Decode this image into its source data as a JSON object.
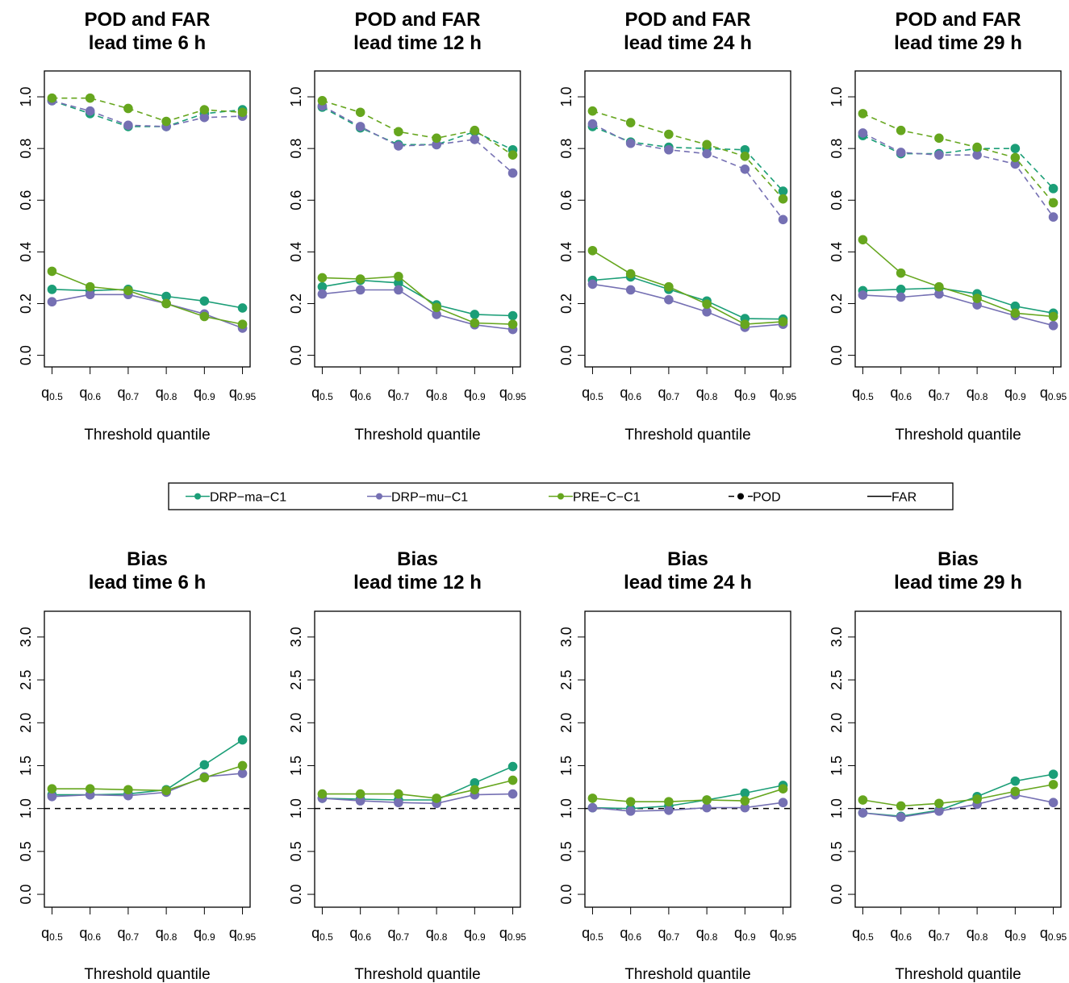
{
  "colors": {
    "DRP-ma-C1": "#1b9e77",
    "DRP-mu-C1": "#7570b3",
    "PRE-C-C1": "#66a61e",
    "reference": "#000000"
  },
  "legend": {
    "placement": "middle-center",
    "items": [
      {
        "label": "DRP−ma−C1",
        "kind": "series",
        "color": "#1b9e77"
      },
      {
        "label": "DRP−mu−C1",
        "kind": "series",
        "color": "#7570b3"
      },
      {
        "label": "PRE−C−C1",
        "kind": "series",
        "color": "#66a61e"
      },
      {
        "label": "POD",
        "kind": "dashed",
        "color": "#000000"
      },
      {
        "label": "FAR",
        "kind": "solid",
        "color": "#000000"
      }
    ]
  },
  "chart_data": [
    {
      "type": "line",
      "row": 0,
      "title": [
        "POD and FAR",
        "lead time 6 h"
      ],
      "xlabel": "Threshold quantile",
      "categories": [
        {
          "base": "q",
          "sub": "0.5"
        },
        {
          "base": "q",
          "sub": "0.6"
        },
        {
          "base": "q",
          "sub": "0.7"
        },
        {
          "base": "q",
          "sub": "0.8"
        },
        {
          "base": "q",
          "sub": "0.9"
        },
        {
          "base": "q",
          "sub": "0.95"
        }
      ],
      "ylim": [
        0,
        1.0
      ],
      "yticks": [
        "0.0",
        "0.2",
        "0.4",
        "0.6",
        "0.8",
        "1.0"
      ],
      "series": [
        {
          "name": "DRP−ma−C1",
          "metric": "POD",
          "values": [
            0.985,
            0.935,
            0.885,
            0.885,
            0.935,
            0.95
          ]
        },
        {
          "name": "DRP−mu−C1",
          "metric": "POD",
          "values": [
            0.985,
            0.945,
            0.89,
            0.885,
            0.92,
            0.925
          ]
        },
        {
          "name": "PRE−C−C1",
          "metric": "POD",
          "values": [
            0.995,
            0.995,
            0.955,
            0.905,
            0.95,
            0.94
          ]
        },
        {
          "name": "DRP−ma−C1",
          "metric": "FAR",
          "values": [
            0.255,
            0.25,
            0.255,
            0.228,
            0.21,
            0.183
          ]
        },
        {
          "name": "DRP−mu−C1",
          "metric": "FAR",
          "values": [
            0.207,
            0.235,
            0.235,
            0.2,
            0.16,
            0.105
          ]
        },
        {
          "name": "PRE−C−C1",
          "metric": "FAR",
          "values": [
            0.325,
            0.265,
            0.25,
            0.2,
            0.15,
            0.12
          ]
        }
      ]
    },
    {
      "type": "line",
      "row": 0,
      "title": [
        "POD and FAR",
        "lead time 12 h"
      ],
      "xlabel": "Threshold quantile",
      "categories": [
        {
          "base": "q",
          "sub": "0.5"
        },
        {
          "base": "q",
          "sub": "0.6"
        },
        {
          "base": "q",
          "sub": "0.7"
        },
        {
          "base": "q",
          "sub": "0.8"
        },
        {
          "base": "q",
          "sub": "0.9"
        },
        {
          "base": "q",
          "sub": "0.95"
        }
      ],
      "ylim": [
        0,
        1.0
      ],
      "yticks": [
        "0.0",
        "0.2",
        "0.4",
        "0.6",
        "0.8",
        "1.0"
      ],
      "series": [
        {
          "name": "DRP−ma−C1",
          "metric": "POD",
          "values": [
            0.96,
            0.88,
            0.815,
            0.815,
            0.865,
            0.795
          ]
        },
        {
          "name": "DRP−mu−C1",
          "metric": "POD",
          "values": [
            0.965,
            0.885,
            0.81,
            0.815,
            0.835,
            0.705
          ]
        },
        {
          "name": "PRE−C−C1",
          "metric": "POD",
          "values": [
            0.985,
            0.94,
            0.865,
            0.84,
            0.87,
            0.775
          ]
        },
        {
          "name": "DRP−ma−C1",
          "metric": "FAR",
          "values": [
            0.265,
            0.29,
            0.28,
            0.195,
            0.158,
            0.153
          ]
        },
        {
          "name": "DRP−mu−C1",
          "metric": "FAR",
          "values": [
            0.237,
            0.253,
            0.253,
            0.158,
            0.118,
            0.1
          ]
        },
        {
          "name": "PRE−C−C1",
          "metric": "FAR",
          "values": [
            0.3,
            0.295,
            0.305,
            0.185,
            0.125,
            0.12
          ]
        }
      ]
    },
    {
      "type": "line",
      "row": 0,
      "title": [
        "POD and FAR",
        "lead time 24 h"
      ],
      "xlabel": "Threshold quantile",
      "categories": [
        {
          "base": "q",
          "sub": "0.5"
        },
        {
          "base": "q",
          "sub": "0.6"
        },
        {
          "base": "q",
          "sub": "0.7"
        },
        {
          "base": "q",
          "sub": "0.8"
        },
        {
          "base": "q",
          "sub": "0.9"
        },
        {
          "base": "q",
          "sub": "0.95"
        }
      ],
      "ylim": [
        0,
        1.0
      ],
      "yticks": [
        "0.0",
        "0.2",
        "0.4",
        "0.6",
        "0.8",
        "1.0"
      ],
      "series": [
        {
          "name": "DRP−ma−C1",
          "metric": "POD",
          "values": [
            0.885,
            0.825,
            0.805,
            0.8,
            0.795,
            0.635
          ]
        },
        {
          "name": "DRP−mu−C1",
          "metric": "POD",
          "values": [
            0.895,
            0.82,
            0.795,
            0.78,
            0.72,
            0.525
          ]
        },
        {
          "name": "PRE−C−C1",
          "metric": "POD",
          "values": [
            0.945,
            0.9,
            0.855,
            0.815,
            0.77,
            0.605
          ]
        },
        {
          "name": "DRP−ma−C1",
          "metric": "FAR",
          "values": [
            0.29,
            0.303,
            0.255,
            0.21,
            0.142,
            0.14
          ]
        },
        {
          "name": "DRP−mu−C1",
          "metric": "FAR",
          "values": [
            0.275,
            0.253,
            0.215,
            0.168,
            0.108,
            0.12
          ]
        },
        {
          "name": "PRE−C−C1",
          "metric": "FAR",
          "values": [
            0.405,
            0.315,
            0.265,
            0.198,
            0.12,
            0.13
          ]
        }
      ]
    },
    {
      "type": "line",
      "row": 0,
      "title": [
        "POD and FAR",
        "lead time 29 h"
      ],
      "xlabel": "Threshold quantile",
      "categories": [
        {
          "base": "q",
          "sub": "0.5"
        },
        {
          "base": "q",
          "sub": "0.6"
        },
        {
          "base": "q",
          "sub": "0.7"
        },
        {
          "base": "q",
          "sub": "0.8"
        },
        {
          "base": "q",
          "sub": "0.9"
        },
        {
          "base": "q",
          "sub": "0.95"
        }
      ],
      "ylim": [
        0,
        1.0
      ],
      "yticks": [
        "0.0",
        "0.2",
        "0.4",
        "0.6",
        "0.8",
        "1.0"
      ],
      "series": [
        {
          "name": "DRP−ma−C1",
          "metric": "POD",
          "values": [
            0.85,
            0.78,
            0.78,
            0.8,
            0.8,
            0.645
          ]
        },
        {
          "name": "DRP−mu−C1",
          "metric": "POD",
          "values": [
            0.86,
            0.785,
            0.775,
            0.775,
            0.74,
            0.535
          ]
        },
        {
          "name": "PRE−C−C1",
          "metric": "POD",
          "values": [
            0.935,
            0.87,
            0.84,
            0.805,
            0.765,
            0.59
          ]
        },
        {
          "name": "DRP−ma−C1",
          "metric": "FAR",
          "values": [
            0.25,
            0.255,
            0.26,
            0.238,
            0.19,
            0.163
          ]
        },
        {
          "name": "DRP−mu−C1",
          "metric": "FAR",
          "values": [
            0.233,
            0.225,
            0.237,
            0.195,
            0.153,
            0.115
          ]
        },
        {
          "name": "PRE−C−C1",
          "metric": "FAR",
          "values": [
            0.447,
            0.318,
            0.265,
            0.22,
            0.163,
            0.15
          ]
        }
      ]
    },
    {
      "type": "line",
      "row": 1,
      "title": [
        "Bias",
        "lead time 6 h"
      ],
      "xlabel": "Threshold quantile",
      "categories": [
        {
          "base": "q",
          "sub": "0.5"
        },
        {
          "base": "q",
          "sub": "0.6"
        },
        {
          "base": "q",
          "sub": "0.7"
        },
        {
          "base": "q",
          "sub": "0.8"
        },
        {
          "base": "q",
          "sub": "0.9"
        },
        {
          "base": "q",
          "sub": "0.95"
        }
      ],
      "ylim": [
        0,
        3.0
      ],
      "yticks": [
        "0.0",
        "0.5",
        "1.0",
        "1.5",
        "2.0",
        "2.5",
        "3.0"
      ],
      "reference_line": 1.0,
      "series": [
        {
          "name": "DRP−ma−C1",
          "values": [
            1.16,
            1.16,
            1.17,
            1.22,
            1.51,
            1.8
          ]
        },
        {
          "name": "DRP−mu−C1",
          "values": [
            1.14,
            1.16,
            1.15,
            1.19,
            1.37,
            1.41
          ]
        },
        {
          "name": "PRE−C−C1",
          "values": [
            1.23,
            1.23,
            1.22,
            1.21,
            1.36,
            1.5
          ]
        }
      ]
    },
    {
      "type": "line",
      "row": 1,
      "title": [
        "Bias",
        "lead time 12 h"
      ],
      "xlabel": "Threshold quantile",
      "categories": [
        {
          "base": "q",
          "sub": "0.5"
        },
        {
          "base": "q",
          "sub": "0.6"
        },
        {
          "base": "q",
          "sub": "0.7"
        },
        {
          "base": "q",
          "sub": "0.8"
        },
        {
          "base": "q",
          "sub": "0.9"
        },
        {
          "base": "q",
          "sub": "0.95"
        }
      ],
      "ylim": [
        0,
        3.0
      ],
      "yticks": [
        "0.0",
        "0.5",
        "1.0",
        "1.5",
        "2.0",
        "2.5",
        "3.0"
      ],
      "reference_line": 1.0,
      "series": [
        {
          "name": "DRP−ma−C1",
          "values": [
            1.12,
            1.11,
            1.1,
            1.1,
            1.3,
            1.49
          ]
        },
        {
          "name": "DRP−mu−C1",
          "values": [
            1.12,
            1.09,
            1.07,
            1.06,
            1.16,
            1.17
          ]
        },
        {
          "name": "PRE−C−C1",
          "values": [
            1.17,
            1.17,
            1.17,
            1.12,
            1.22,
            1.33
          ]
        }
      ]
    },
    {
      "type": "line",
      "row": 1,
      "title": [
        "Bias",
        "lead time 24 h"
      ],
      "xlabel": "Threshold quantile",
      "categories": [
        {
          "base": "q",
          "sub": "0.5"
        },
        {
          "base": "q",
          "sub": "0.6"
        },
        {
          "base": "q",
          "sub": "0.7"
        },
        {
          "base": "q",
          "sub": "0.8"
        },
        {
          "base": "q",
          "sub": "0.9"
        },
        {
          "base": "q",
          "sub": "0.95"
        }
      ],
      "ylim": [
        0,
        3.0
      ],
      "yticks": [
        "0.0",
        "0.5",
        "1.0",
        "1.5",
        "2.0",
        "2.5",
        "3.0"
      ],
      "reference_line": 1.0,
      "series": [
        {
          "name": "DRP−ma−C1",
          "values": [
            1.01,
            1.0,
            1.03,
            1.1,
            1.18,
            1.27
          ]
        },
        {
          "name": "DRP−mu−C1",
          "values": [
            1.01,
            0.97,
            0.98,
            1.01,
            1.01,
            1.07
          ]
        },
        {
          "name": "PRE−C−C1",
          "values": [
            1.12,
            1.08,
            1.08,
            1.1,
            1.09,
            1.23
          ]
        }
      ]
    },
    {
      "type": "line",
      "row": 1,
      "title": [
        "Bias",
        "lead time 29 h"
      ],
      "xlabel": "Threshold quantile",
      "categories": [
        {
          "base": "q",
          "sub": "0.5"
        },
        {
          "base": "q",
          "sub": "0.6"
        },
        {
          "base": "q",
          "sub": "0.7"
        },
        {
          "base": "q",
          "sub": "0.8"
        },
        {
          "base": "q",
          "sub": "0.9"
        },
        {
          "base": "q",
          "sub": "0.95"
        }
      ],
      "ylim": [
        0,
        3.0
      ],
      "yticks": [
        "0.0",
        "0.5",
        "1.0",
        "1.5",
        "2.0",
        "2.5",
        "3.0"
      ],
      "reference_line": 1.0,
      "series": [
        {
          "name": "DRP−ma−C1",
          "values": [
            0.95,
            0.91,
            0.98,
            1.14,
            1.32,
            1.4
          ]
        },
        {
          "name": "DRP−mu−C1",
          "values": [
            0.95,
            0.9,
            0.97,
            1.05,
            1.16,
            1.07
          ]
        },
        {
          "name": "PRE−C−C1",
          "values": [
            1.1,
            1.03,
            1.06,
            1.11,
            1.2,
            1.28
          ]
        }
      ]
    }
  ]
}
